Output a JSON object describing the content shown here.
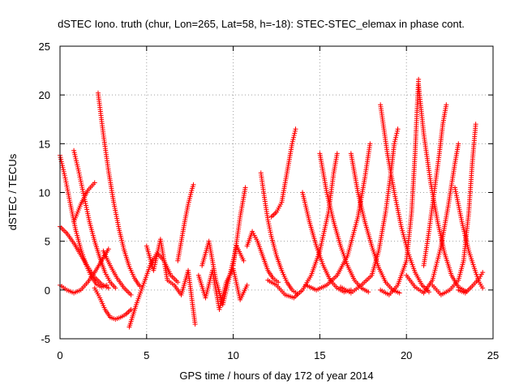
{
  "chart_data": {
    "type": "scatter",
    "title": "dSTEC Iono. truth (chur, Lon=265, Lat=58, h=-18): STEC-STEC_elemax in phase cont.",
    "xlabel": "GPS time / hours of day 172 of year 2014",
    "ylabel": "dSTEC  / TECUs",
    "xlim": [
      0,
      25
    ],
    "ylim": [
      -5,
      25
    ],
    "xticks": [
      0,
      5,
      10,
      15,
      20,
      25
    ],
    "yticks": [
      -5,
      0,
      5,
      10,
      15,
      20,
      25
    ],
    "grid": true,
    "marker": "+",
    "color": "#ff0000",
    "series": [
      {
        "points": [
          [
            0.0,
            13.8
          ],
          [
            0.3,
            11.5
          ],
          [
            0.6,
            8.8
          ],
          [
            0.9,
            6.2
          ],
          [
            1.2,
            4.2
          ],
          [
            1.5,
            2.6
          ],
          [
            1.8,
            1.4
          ],
          [
            2.1,
            0.6
          ],
          [
            2.4,
            0.3
          ],
          [
            2.7,
            0.5
          ]
        ]
      },
      {
        "points": [
          [
            0.0,
            6.5
          ],
          [
            0.4,
            5.8
          ],
          [
            0.8,
            4.8
          ],
          [
            1.2,
            3.6
          ],
          [
            1.6,
            2.4
          ],
          [
            2.0,
            1.3
          ],
          [
            2.4,
            0.6
          ],
          [
            2.8,
            0.2
          ]
        ]
      },
      {
        "points": [
          [
            0.0,
            0.5
          ],
          [
            0.4,
            0.0
          ],
          [
            0.8,
            -0.3
          ],
          [
            1.2,
            0.0
          ],
          [
            1.6,
            0.8
          ],
          [
            2.0,
            1.8
          ],
          [
            2.4,
            3.0
          ],
          [
            2.8,
            4.2
          ]
        ]
      },
      {
        "points": [
          [
            0.8,
            14.3
          ],
          [
            1.1,
            12.0
          ],
          [
            1.4,
            9.5
          ],
          [
            1.7,
            7.0
          ],
          [
            2.0,
            5.0
          ],
          [
            2.3,
            3.3
          ],
          [
            2.6,
            1.8
          ],
          [
            2.9,
            0.8
          ],
          [
            3.2,
            0.2
          ]
        ]
      },
      {
        "points": [
          [
            0.8,
            7.0
          ],
          [
            1.2,
            8.8
          ],
          [
            1.6,
            10.2
          ],
          [
            2.0,
            11.0
          ]
        ]
      },
      {
        "points": [
          [
            2.2,
            20.2
          ],
          [
            2.5,
            16.0
          ],
          [
            2.8,
            12.2
          ],
          [
            3.1,
            9.0
          ],
          [
            3.4,
            6.3
          ],
          [
            3.7,
            4.1
          ],
          [
            4.0,
            2.4
          ],
          [
            4.3,
            1.2
          ],
          [
            4.6,
            0.4
          ]
        ]
      },
      {
        "points": [
          [
            2.0,
            0.2
          ],
          [
            2.3,
            -0.8
          ],
          [
            2.6,
            -2.0
          ],
          [
            2.9,
            -2.8
          ],
          [
            3.2,
            -3.0
          ],
          [
            3.5,
            -2.8
          ],
          [
            3.8,
            -2.5
          ],
          [
            4.1,
            -2.0
          ]
        ]
      },
      {
        "points": [
          [
            2.5,
            4.0
          ],
          [
            2.9,
            2.5
          ],
          [
            3.3,
            1.2
          ],
          [
            3.7,
            0.2
          ],
          [
            4.1,
            -0.5
          ]
        ]
      },
      {
        "points": [
          [
            4.0,
            -3.8
          ],
          [
            4.4,
            -1.5
          ],
          [
            4.8,
            0.5
          ],
          [
            5.2,
            2.5
          ],
          [
            5.6,
            3.8
          ],
          [
            6.0,
            3.0
          ],
          [
            6.4,
            1.5
          ],
          [
            6.8,
            0.8
          ]
        ]
      },
      {
        "points": [
          [
            5.0,
            4.5
          ],
          [
            5.4,
            2.0
          ],
          [
            5.8,
            5.2
          ],
          [
            6.2,
            1.0
          ],
          [
            6.6,
            0.5
          ],
          [
            7.0,
            -0.5
          ],
          [
            7.4,
            2.0
          ],
          [
            7.8,
            -3.5
          ]
        ]
      },
      {
        "points": [
          [
            6.8,
            3.0
          ],
          [
            7.0,
            5.0
          ],
          [
            7.2,
            7.0
          ],
          [
            7.4,
            8.8
          ],
          [
            7.6,
            10.2
          ],
          [
            7.7,
            10.8
          ]
        ]
      },
      {
        "points": [
          [
            8.0,
            1.5
          ],
          [
            8.4,
            -0.8
          ],
          [
            8.8,
            2.0
          ],
          [
            9.2,
            -2.0
          ],
          [
            9.6,
            0.8
          ],
          [
            10.0,
            2.2
          ],
          [
            10.4,
            -1.0
          ],
          [
            10.8,
            0.5
          ]
        ]
      },
      {
        "points": [
          [
            8.2,
            2.5
          ],
          [
            8.6,
            5.0
          ],
          [
            9.0,
            1.0
          ],
          [
            9.4,
            -1.5
          ],
          [
            9.8,
            1.5
          ],
          [
            10.2,
            4.5
          ],
          [
            10.6,
            3.0
          ]
        ]
      },
      {
        "points": [
          [
            10.0,
            2.5
          ],
          [
            10.2,
            5.0
          ],
          [
            10.4,
            7.5
          ],
          [
            10.6,
            9.5
          ],
          [
            10.7,
            10.5
          ]
        ]
      },
      {
        "points": [
          [
            10.8,
            4.5
          ],
          [
            11.1,
            6.0
          ],
          [
            11.4,
            5.0
          ],
          [
            11.7,
            3.5
          ],
          [
            12.0,
            2.0
          ],
          [
            12.3,
            1.2
          ],
          [
            12.6,
            0.8
          ]
        ]
      },
      {
        "points": [
          [
            11.6,
            12.0
          ],
          [
            11.8,
            9.5
          ],
          [
            12.0,
            7.2
          ],
          [
            12.2,
            5.5
          ],
          [
            12.5,
            3.5
          ],
          [
            12.8,
            2.0
          ],
          [
            13.1,
            0.8
          ],
          [
            13.4,
            0.0
          ],
          [
            13.7,
            -0.4
          ]
        ]
      },
      {
        "points": [
          [
            12.2,
            7.5
          ],
          [
            12.5,
            8.0
          ],
          [
            12.8,
            9.0
          ],
          [
            13.1,
            12.0
          ],
          [
            13.4,
            15.0
          ],
          [
            13.6,
            16.5
          ]
        ]
      },
      {
        "points": [
          [
            12.0,
            1.0
          ],
          [
            12.5,
            0.5
          ],
          [
            13.0,
            -0.5
          ],
          [
            13.5,
            -0.8
          ],
          [
            14.0,
            0.0
          ],
          [
            14.5,
            1.5
          ],
          [
            15.0,
            4.0
          ],
          [
            15.5,
            8.0
          ],
          [
            15.8,
            12.0
          ],
          [
            16.0,
            14.0
          ]
        ]
      },
      {
        "points": [
          [
            14.0,
            10.0
          ],
          [
            14.4,
            7.0
          ],
          [
            14.8,
            4.5
          ],
          [
            15.2,
            2.5
          ],
          [
            15.6,
            1.0
          ],
          [
            16.0,
            0.2
          ],
          [
            16.4,
            -0.2
          ],
          [
            16.8,
            0.0
          ]
        ]
      },
      {
        "points": [
          [
            15.0,
            14.0
          ],
          [
            15.4,
            10.0
          ],
          [
            15.8,
            7.0
          ],
          [
            16.2,
            4.5
          ],
          [
            16.6,
            2.5
          ],
          [
            17.0,
            1.0
          ],
          [
            17.4,
            0.2
          ],
          [
            17.8,
            -0.2
          ]
        ]
      },
      {
        "points": [
          [
            14.2,
            0.5
          ],
          [
            14.8,
            0.0
          ],
          [
            15.4,
            0.5
          ],
          [
            16.0,
            1.5
          ],
          [
            16.6,
            3.5
          ],
          [
            17.2,
            7.5
          ],
          [
            17.6,
            11.5
          ],
          [
            17.9,
            15.0
          ]
        ]
      },
      {
        "points": [
          [
            16.8,
            14.0
          ],
          [
            17.2,
            10.0
          ],
          [
            17.6,
            7.0
          ],
          [
            18.0,
            4.5
          ],
          [
            18.4,
            2.3
          ],
          [
            18.8,
            0.8
          ],
          [
            19.2,
            0.0
          ],
          [
            19.6,
            -0.3
          ]
        ]
      },
      {
        "points": [
          [
            16.2,
            0.3
          ],
          [
            16.8,
            -0.3
          ],
          [
            17.4,
            0.5
          ],
          [
            18.0,
            1.5
          ],
          [
            18.4,
            4.0
          ],
          [
            18.8,
            8.0
          ],
          [
            19.1,
            12.0
          ],
          [
            19.3,
            15.0
          ],
          [
            19.5,
            16.5
          ]
        ]
      },
      {
        "points": [
          [
            18.5,
            19.0
          ],
          [
            18.9,
            14.0
          ],
          [
            19.3,
            10.0
          ],
          [
            19.7,
            6.5
          ],
          [
            20.1,
            3.8
          ],
          [
            20.5,
            1.8
          ],
          [
            20.9,
            0.5
          ],
          [
            21.3,
            -0.2
          ]
        ]
      },
      {
        "points": [
          [
            18.5,
            0.0
          ],
          [
            19.0,
            -0.5
          ],
          [
            19.5,
            0.5
          ],
          [
            20.0,
            3.0
          ],
          [
            20.3,
            8.0
          ],
          [
            20.5,
            14.0
          ],
          [
            20.6,
            18.0
          ],
          [
            20.7,
            21.6
          ]
        ]
      },
      {
        "points": [
          [
            20.7,
            21.0
          ],
          [
            21.0,
            16.0
          ],
          [
            21.4,
            11.0
          ],
          [
            21.8,
            7.0
          ],
          [
            22.2,
            3.8
          ],
          [
            22.6,
            1.5
          ],
          [
            23.0,
            0.3
          ],
          [
            23.4,
            -0.1
          ]
        ]
      },
      {
        "points": [
          [
            20.0,
            1.5
          ],
          [
            20.5,
            0.3
          ],
          [
            21.0,
            -0.3
          ],
          [
            21.5,
            1.0
          ],
          [
            22.0,
            4.5
          ],
          [
            22.4,
            8.5
          ],
          [
            22.8,
            13.0
          ],
          [
            23.0,
            15.0
          ]
        ]
      },
      {
        "points": [
          [
            21.0,
            2.5
          ],
          [
            21.3,
            6.0
          ],
          [
            21.6,
            10.0
          ],
          [
            21.9,
            14.0
          ],
          [
            22.1,
            17.0
          ],
          [
            22.3,
            19.0
          ]
        ]
      },
      {
        "points": [
          [
            21.5,
            0.5
          ],
          [
            22.0,
            -0.5
          ],
          [
            22.5,
            0.0
          ],
          [
            23.0,
            1.0
          ],
          [
            23.3,
            3.0
          ],
          [
            23.6,
            8.0
          ],
          [
            23.8,
            13.0
          ],
          [
            24.0,
            17.0
          ]
        ]
      },
      {
        "points": [
          [
            22.8,
            10.5
          ],
          [
            23.2,
            7.0
          ],
          [
            23.6,
            4.0
          ],
          [
            24.0,
            1.8
          ],
          [
            24.2,
            0.8
          ],
          [
            24.4,
            0.2
          ]
        ]
      },
      {
        "points": [
          [
            23.0,
            0.0
          ],
          [
            23.4,
            -0.3
          ],
          [
            23.8,
            0.4
          ],
          [
            24.2,
            1.2
          ],
          [
            24.4,
            1.8
          ]
        ]
      }
    ]
  }
}
